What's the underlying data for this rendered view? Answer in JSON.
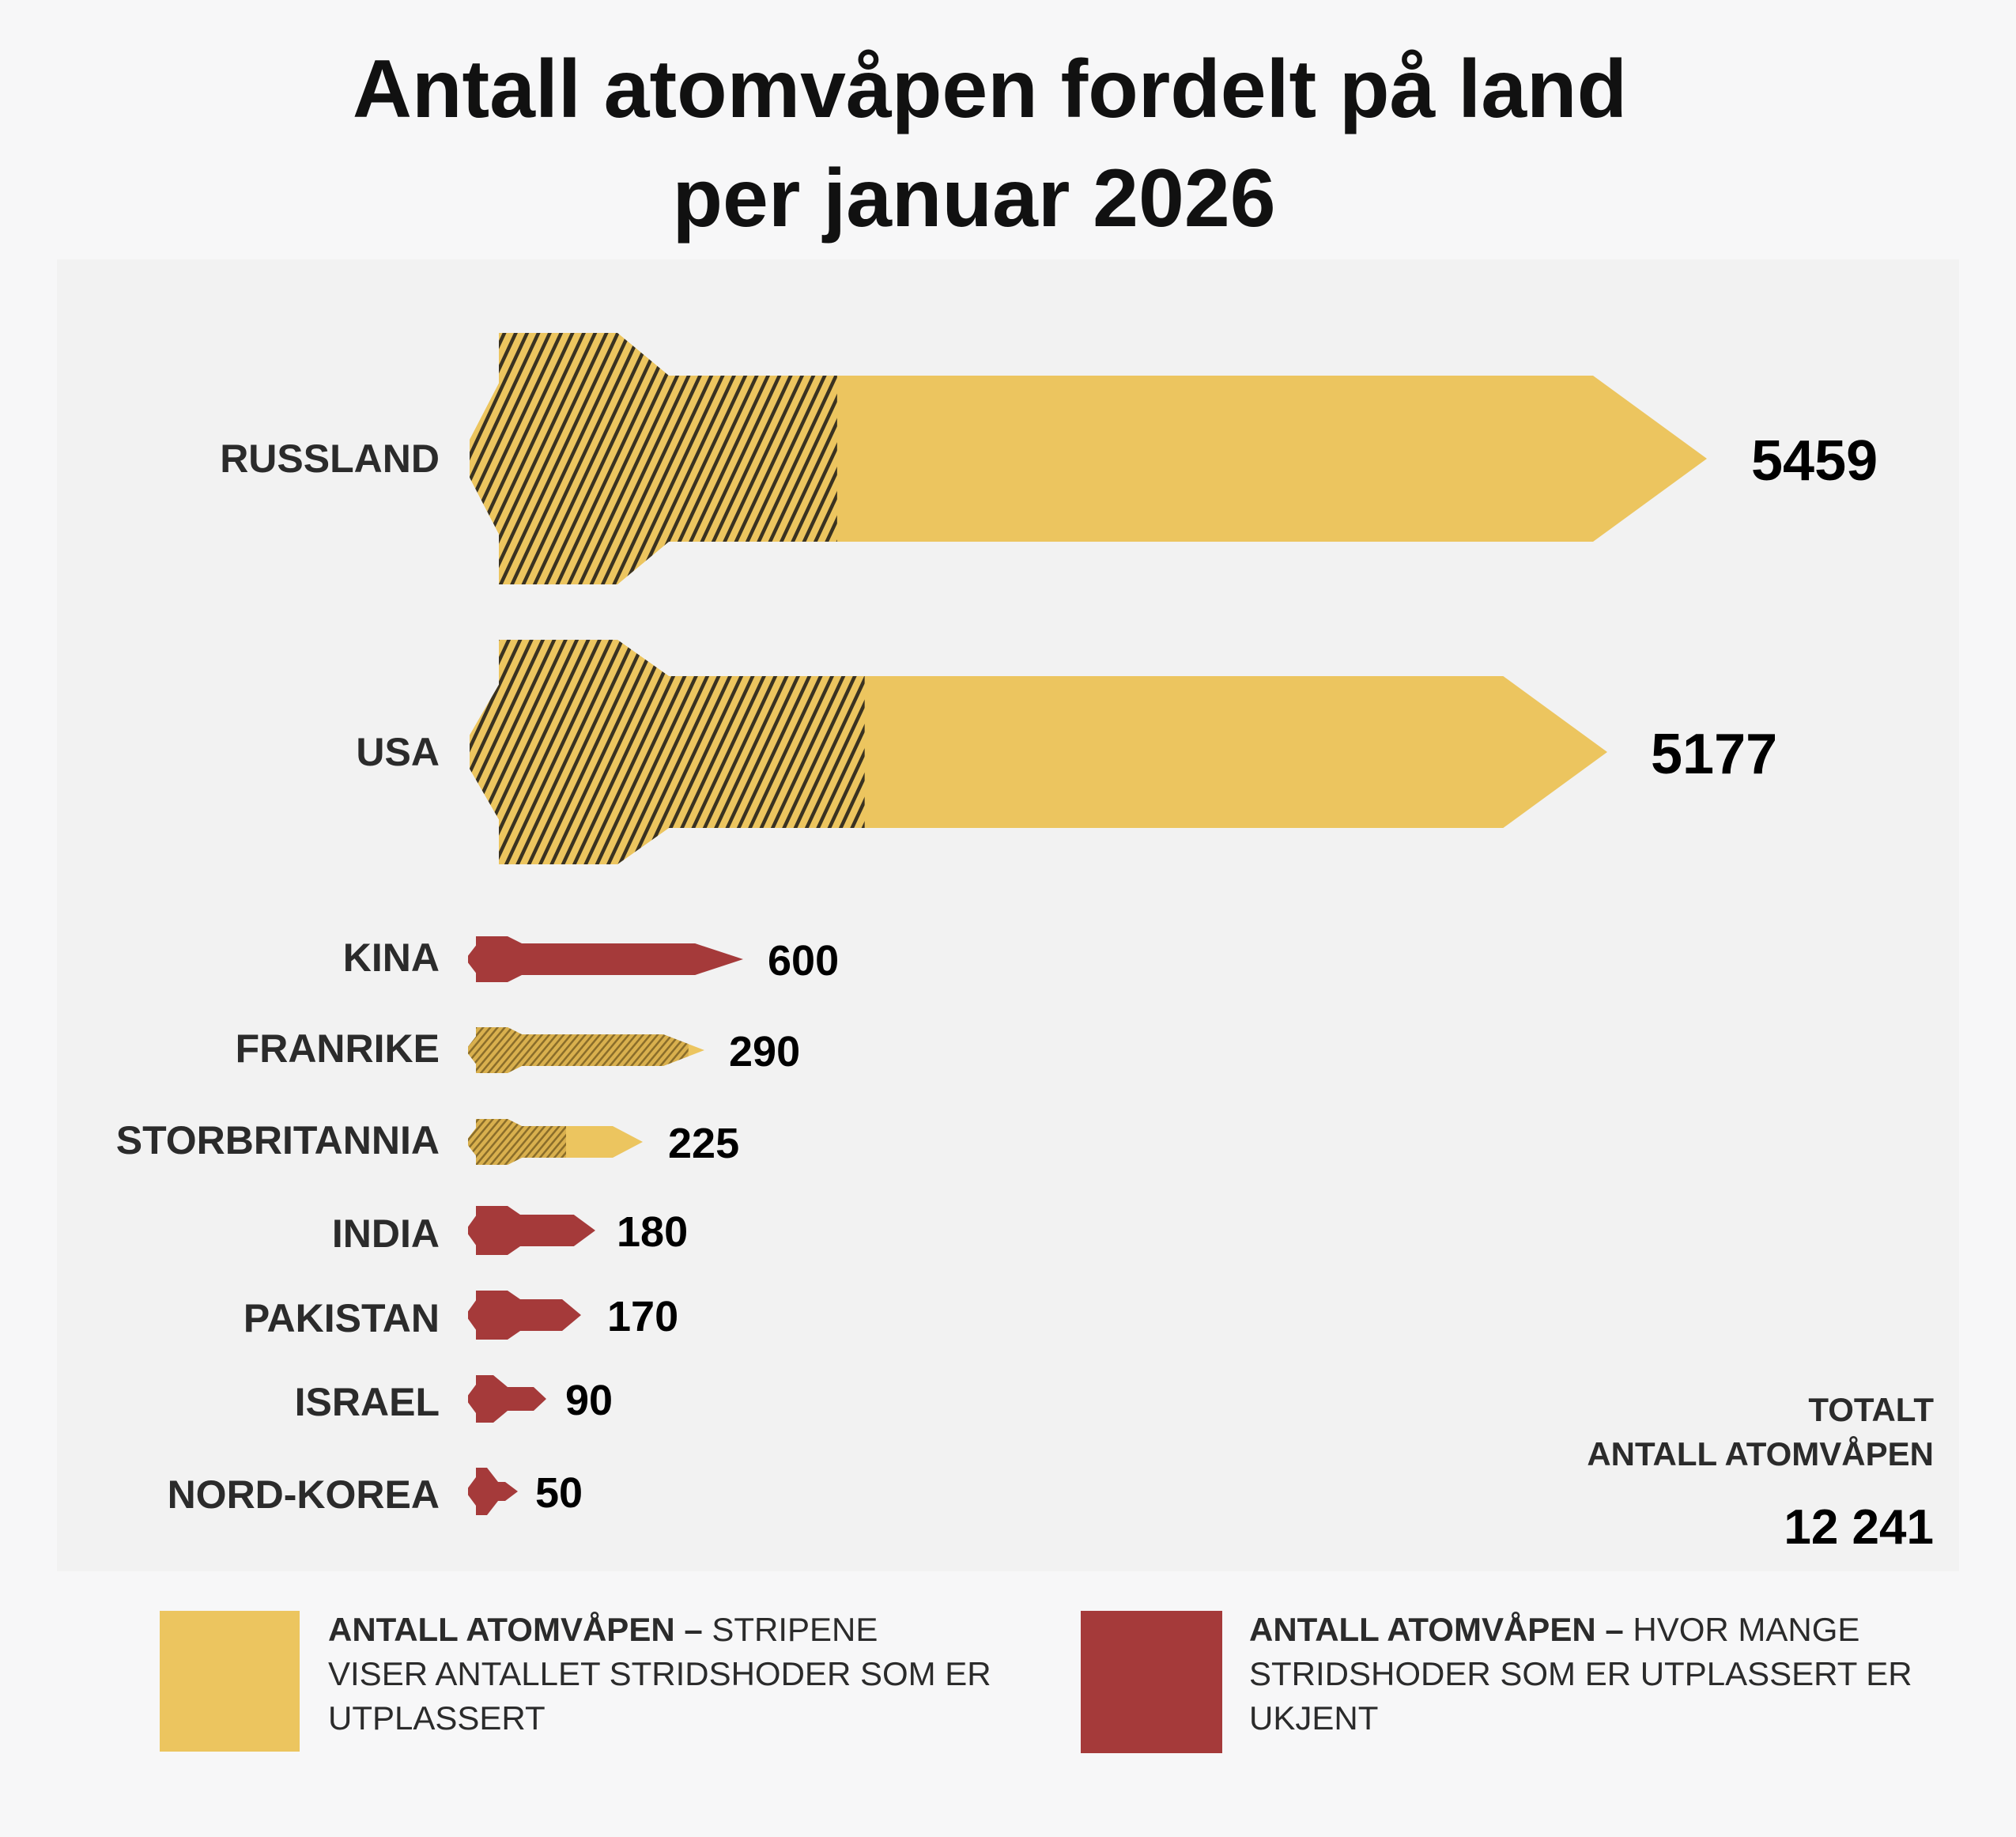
{
  "chart_data": {
    "type": "bar",
    "orientation": "horizontal",
    "title": "Antall atomvåpen fordelt på land",
    "subtitle": "per januar 2026",
    "categories": [
      "RUSSLAND",
      "USA",
      "KINA",
      "FRANRIKE",
      "STORBRITANNIA",
      "INDIA",
      "PAKISTAN",
      "ISRAEL",
      "NORD-KOREA"
    ],
    "values": [
      5459,
      5177,
      600,
      290,
      225,
      180,
      170,
      90,
      50
    ],
    "value_labels": [
      "5459",
      "5177",
      "600",
      "290",
      "225",
      "180",
      "170",
      "90",
      "50"
    ],
    "deployed_known": [
      true,
      true,
      false,
      true,
      true,
      false,
      false,
      false,
      false
    ],
    "deployed_share_estimate": [
      0.28,
      0.33,
      0,
      0.93,
      0.54,
      0,
      0,
      0,
      0
    ],
    "total": {
      "line1": "TOTALT",
      "line2": "ANTALL ATOMVÅPEN",
      "value": "12 241"
    },
    "legend": [
      {
        "bold": "ANTALL ATOMVÅPEN – ",
        "text1": "STRIPENE",
        "text2": "VISER ANTALLET STRIDSHODER SOM ER",
        "text3": "UTPLASSERT",
        "color": "#ecc55f"
      },
      {
        "bold": "ANTALL ATOMVÅPEN – ",
        "text1": "HVOR MANGE",
        "text2": "STRIDSHODER SOM ER UTPLASSERT ER",
        "text3": "UKJENT",
        "color": "#a53a3a"
      }
    ],
    "colors": {
      "known": "#ecc55f",
      "unknown": "#a53a3a",
      "hatch": "#3a3220",
      "panel": "#f2f2f2"
    },
    "legend_position": "bottom",
    "grid": false
  }
}
